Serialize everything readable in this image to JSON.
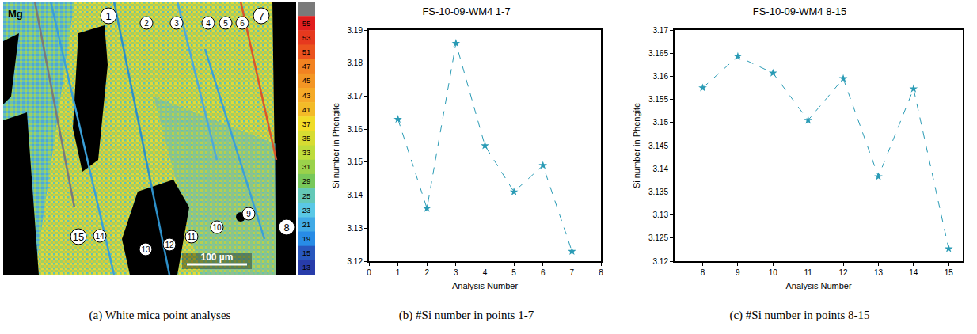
{
  "map": {
    "element": "Mg",
    "scale_bar": "100 µm",
    "points": [
      "1",
      "2",
      "3",
      "4",
      "5",
      "6",
      "7",
      "8",
      "9",
      "10",
      "11",
      "12",
      "13",
      "14",
      "15"
    ],
    "colorbar_ticks": [
      55,
      53,
      51,
      47,
      45,
      43,
      41,
      37,
      35,
      33,
      31,
      29,
      25,
      23,
      21,
      19,
      15,
      13
    ]
  },
  "captions": [
    "(a) White mica point analyses",
    "(b) #Si number in points 1-7",
    "(c) #Si number in points 8-15"
  ],
  "chart_data": [
    {
      "type": "line",
      "title": "FS-10-09-WM4 1-7",
      "x_label": "Analysis Number",
      "y_label": "Si number in Phengite",
      "x": [
        1,
        2,
        3,
        4,
        5,
        6,
        7
      ],
      "values": [
        3.163,
        3.136,
        3.186,
        3.155,
        3.141,
        3.149,
        3.123
      ],
      "color": "#2a9bb5",
      "marker": "star",
      "line_style": "dashed",
      "xlim": [
        0,
        8
      ],
      "xticks": [
        0,
        1,
        2,
        3,
        4,
        5,
        6,
        7,
        8
      ],
      "ylim": [
        3.12,
        3.19
      ],
      "yticks": [
        3.12,
        3.13,
        3.14,
        3.15,
        3.16,
        3.17,
        3.18,
        3.19
      ],
      "grid": false
    },
    {
      "type": "line",
      "title": "FS-10-09-WM4 8-15",
      "x_label": "Analysis Number",
      "y_label": "Si number in Phengite",
      "x": [
        8,
        9,
        10,
        11,
        12,
        13,
        14,
        15
      ],
      "values": [
        3.1575,
        3.1643,
        3.1607,
        3.1505,
        3.1595,
        3.1383,
        3.1573,
        3.1227
      ],
      "color": "#2a9bb5",
      "marker": "star",
      "line_style": "dashed",
      "xlim": [
        7.2,
        15.4
      ],
      "xticks": [
        8,
        9,
        10,
        11,
        12,
        13,
        14,
        15
      ],
      "ylim": [
        3.12,
        3.17
      ],
      "yticks": [
        3.12,
        3.125,
        3.13,
        3.135,
        3.14,
        3.145,
        3.15,
        3.155,
        3.16,
        3.165,
        3.17
      ],
      "grid": false
    }
  ]
}
